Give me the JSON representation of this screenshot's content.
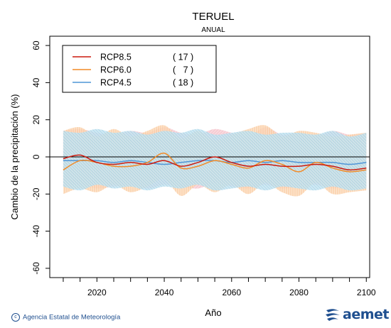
{
  "chart_data": {
    "type": "line",
    "title": "TERUEL",
    "subtitle": "ANUAL",
    "xlabel": "Año",
    "ylabel": "Cambio de la precipitación (%)",
    "xlim": [
      2006,
      2101
    ],
    "ylim": [
      -65,
      65
    ],
    "xticks": [
      2020,
      2040,
      2060,
      2080,
      2100
    ],
    "yticks": [
      -60,
      -40,
      -20,
      0,
      20,
      40,
      60
    ],
    "x": [
      2010,
      2015,
      2020,
      2025,
      2030,
      2035,
      2040,
      2045,
      2050,
      2055,
      2060,
      2065,
      2070,
      2075,
      2080,
      2085,
      2090,
      2095,
      2100
    ],
    "series": [
      {
        "name": "RCP8.5",
        "count": "( 17 )",
        "color": "#cc1a0e",
        "values": [
          -1,
          1,
          -3,
          -4,
          -3,
          -4,
          -2,
          -5,
          -3,
          0,
          -3,
          -5,
          -4,
          -5,
          -5,
          -4,
          -5,
          -7,
          -6
        ],
        "band_upper": [
          14,
          15,
          13,
          12,
          14,
          13,
          16,
          13,
          12,
          15,
          13,
          11,
          16,
          12,
          13,
          11,
          14,
          12,
          13
        ],
        "band_lower": [
          -16,
          -15,
          -17,
          -16,
          -15,
          -17,
          -15,
          -16,
          -17,
          -14,
          -16,
          -17,
          -15,
          -17,
          -16,
          -15,
          -17,
          -16,
          -17
        ]
      },
      {
        "name": "RCP6.0",
        "count": "(   7 )",
        "color": "#f28a26",
        "values": [
          -7,
          -2,
          -3,
          -5,
          -5,
          -3,
          2,
          -6,
          -5,
          -2,
          -4,
          -6,
          -2,
          -4,
          -8,
          -3,
          -6,
          -8,
          -7
        ],
        "band_upper": [
          14,
          16,
          11,
          15,
          11,
          14,
          17,
          10,
          14,
          9,
          12,
          15,
          17,
          11,
          14,
          13,
          11,
          12,
          13
        ],
        "band_lower": [
          -20,
          -17,
          -19,
          -15,
          -19,
          -16,
          -12,
          -21,
          -15,
          -19,
          -15,
          -20,
          -14,
          -19,
          -21,
          -14,
          -20,
          -19,
          -18
        ]
      },
      {
        "name": "RCP4.5",
        "count": "( 18 )",
        "color": "#4f95d6",
        "values": [
          -2,
          -2,
          -2,
          -3,
          -2,
          -3,
          -4,
          -3,
          -2,
          -2,
          -3,
          -2,
          -3,
          -2,
          -3,
          -3,
          -3,
          -4,
          -3
        ],
        "band_upper": [
          14,
          13,
          15,
          13,
          14,
          12,
          14,
          13,
          15,
          12,
          13,
          14,
          12,
          13,
          13,
          12,
          14,
          11,
          13
        ],
        "band_lower": [
          -16,
          -18,
          -15,
          -17,
          -16,
          -18,
          -16,
          -17,
          -15,
          -18,
          -17,
          -16,
          -18,
          -16,
          -17,
          -18,
          -16,
          -18,
          -17
        ]
      }
    ]
  },
  "footer": {
    "credit": "Agencia Estatal de Meteorología",
    "logo_text": "aemet"
  }
}
